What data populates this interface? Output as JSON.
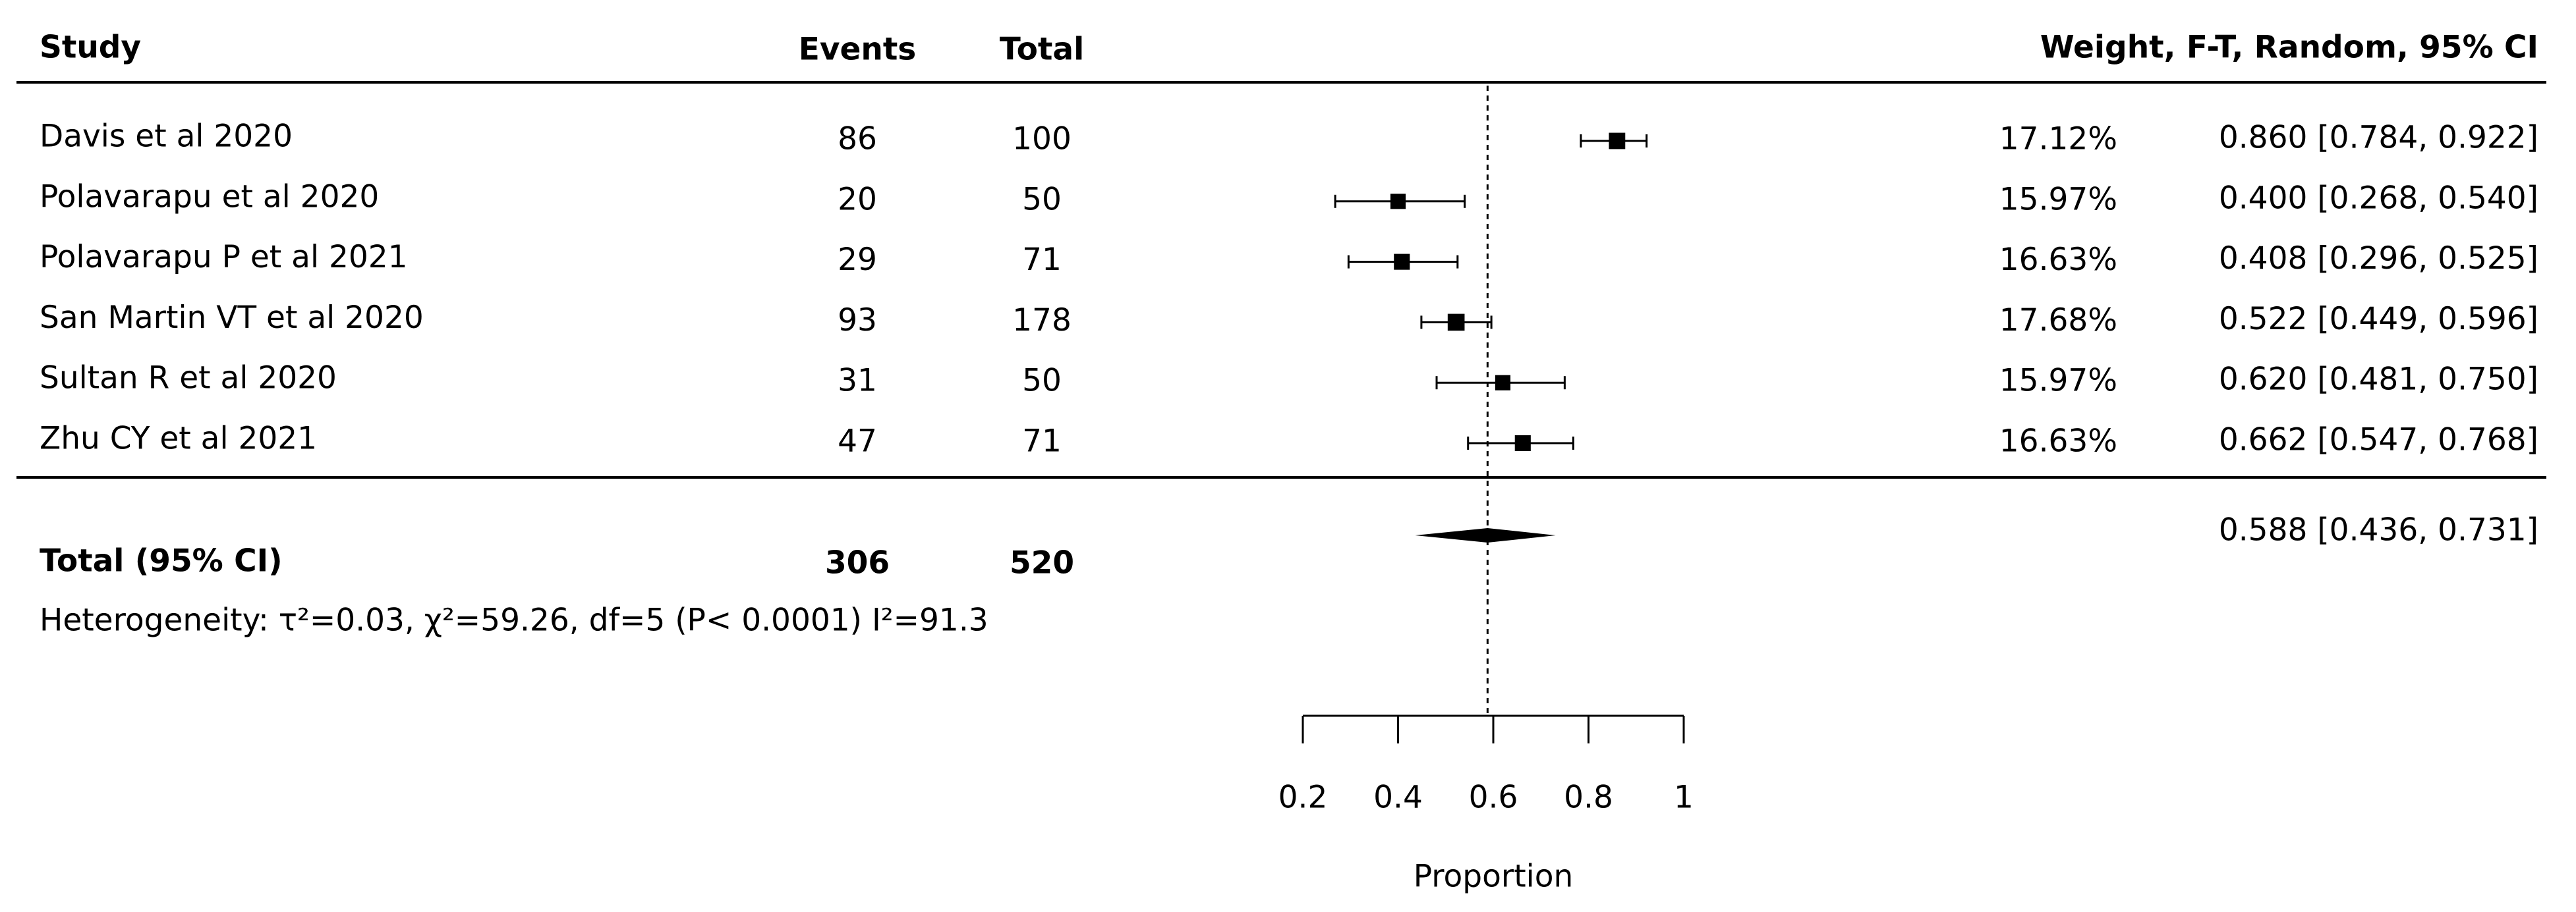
{
  "chart_data": {
    "type": "forest",
    "columns": {
      "study": "Study",
      "events": "Events",
      "total": "Total",
      "weight_ci": "Weight, F-T, Random, 95% CI"
    },
    "studies": [
      {
        "name": "Davis et al 2020",
        "events": 86,
        "total": 100,
        "weight": 17.12,
        "weight_label": "17.12%",
        "estimate": 0.86,
        "lower": 0.784,
        "upper": 0.922,
        "ci_label": "0.860 [0.784, 0.922]"
      },
      {
        "name": "Polavarapu et al 2020",
        "events": 20,
        "total": 50,
        "weight": 15.97,
        "weight_label": "15.97%",
        "estimate": 0.4,
        "lower": 0.268,
        "upper": 0.54,
        "ci_label": "0.400 [0.268, 0.540]"
      },
      {
        "name": "Polavarapu P et al 2021",
        "events": 29,
        "total": 71,
        "weight": 16.63,
        "weight_label": "16.63%",
        "estimate": 0.408,
        "lower": 0.296,
        "upper": 0.525,
        "ci_label": "0.408 [0.296, 0.525]"
      },
      {
        "name": "San Martin VT et al 2020",
        "events": 93,
        "total": 178,
        "weight": 17.68,
        "weight_label": "17.68%",
        "estimate": 0.522,
        "lower": 0.449,
        "upper": 0.596,
        "ci_label": "0.522 [0.449, 0.596]"
      },
      {
        "name": "Sultan R et al 2020",
        "events": 31,
        "total": 50,
        "weight": 15.97,
        "weight_label": "15.97%",
        "estimate": 0.62,
        "lower": 0.481,
        "upper": 0.75,
        "ci_label": "0.620 [0.481, 0.750]"
      },
      {
        "name": "Zhu CY et al 2021",
        "events": 47,
        "total": 71,
        "weight": 16.63,
        "weight_label": "16.63%",
        "estimate": 0.662,
        "lower": 0.547,
        "upper": 0.768,
        "ci_label": "0.662 [0.547, 0.768]"
      }
    ],
    "pooled": {
      "name": "Total (95% CI)",
      "events": 306,
      "total": 520,
      "estimate": 0.588,
      "lower": 0.436,
      "upper": 0.731,
      "ci_label": "0.588 [0.436, 0.731]"
    },
    "heterogeneity": "Heterogeneity: τ²=0.03, χ²=59.26, df=5 (P< 0.0001) I²=91.3",
    "xlabel": "Proportion",
    "xlim": [
      0.2,
      1
    ],
    "xticks": [
      0.2,
      0.4,
      0.6,
      0.8,
      1
    ]
  }
}
